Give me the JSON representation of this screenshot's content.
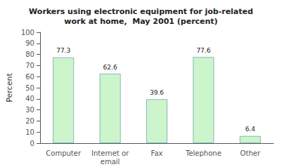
{
  "chart_data": {
    "type": "bar",
    "title": "Workers using electronic equipment for job-related\nwork at home,  May 2001 (percent)",
    "ylabel": "Percent",
    "categories": [
      "Computer",
      "Internet or\nemail",
      "Fax",
      "Telephone",
      "Other"
    ],
    "values": [
      77.3,
      62.6,
      39.6,
      77.6,
      6.4
    ],
    "color": "#ccf5cc",
    "ylim": [
      0,
      100
    ],
    "yticks": [
      0,
      10,
      20,
      30,
      40,
      50,
      60,
      70,
      80,
      90,
      100
    ],
    "grid": false,
    "data_labels": true
  }
}
